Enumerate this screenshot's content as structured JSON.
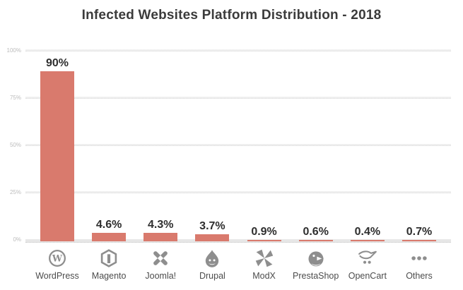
{
  "title": "Infected Websites Platform Distribution - 2018",
  "y_axis": {
    "ticks": [
      {
        "label": "100%",
        "pct": 100
      },
      {
        "label": "75%",
        "pct": 75
      },
      {
        "label": "50%",
        "pct": 50
      },
      {
        "label": "25%",
        "pct": 25
      },
      {
        "label": "0%",
        "pct": 0
      }
    ]
  },
  "chart_data": {
    "type": "bar",
    "title": "Infected Websites Platform Distribution - 2018",
    "categories": [
      "WordPress",
      "Magento",
      "Joomla!",
      "Drupal",
      "ModX",
      "PrestaShop",
      "OpenCart",
      "Others"
    ],
    "values": [
      90,
      4.6,
      4.3,
      3.7,
      0.9,
      0.6,
      0.4,
      0.7
    ],
    "value_labels": [
      "90%",
      "4.6%",
      "4.3%",
      "3.7%",
      "0.9%",
      "0.6%",
      "0.4%",
      "0.7%"
    ],
    "icons": [
      "wordpress-icon",
      "magento-icon",
      "joomla-icon",
      "drupal-icon",
      "modx-icon",
      "prestashop-icon",
      "opencart-icon",
      "others-icon"
    ],
    "xlabel": "",
    "ylabel": "",
    "ylim": [
      0,
      100
    ],
    "y_ticks": [
      0,
      25,
      50,
      75,
      100
    ],
    "grid": true,
    "legend": false,
    "bar_color": "#d97a6d"
  },
  "colors": {
    "background": "#ffffff",
    "bar": "#d97a6d",
    "title": "#3b3b3b",
    "value_label": "#2e2e2e",
    "tick_label": "#bcbcbc",
    "grid_line": "#efefef",
    "axis_band": "#e7e7e7",
    "icon": "#8e8e8e",
    "category_label": "#4c4c4c"
  }
}
